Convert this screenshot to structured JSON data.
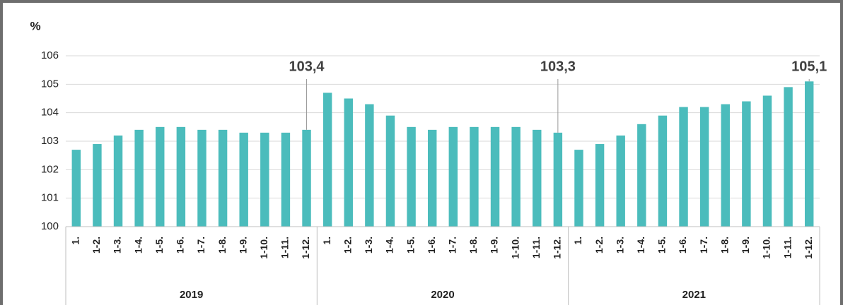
{
  "chart_data": {
    "type": "bar",
    "y_label": "%",
    "categories": [
      "1.",
      "1-2.",
      "1-3.",
      "1-4.",
      "1-5.",
      "1-6.",
      "1-7.",
      "1-8.",
      "1-9.",
      "1-10.",
      "1-11.",
      "1-12.",
      "1.",
      "1-2.",
      "1-3.",
      "1-4.",
      "1-5.",
      "1-6.",
      "1-7.",
      "1-8.",
      "1-9.",
      "1-10.",
      "1-11.",
      "1-12.",
      "1.",
      "1-2.",
      "1-3.",
      "1-4.",
      "1-5.",
      "1-6.",
      "1-7.",
      "1-8.",
      "1-9.",
      "1-10.",
      "1-11.",
      "1-12."
    ],
    "groups": [
      "2019",
      "2020",
      "2021"
    ],
    "values": [
      102.7,
      102.9,
      103.2,
      103.4,
      103.5,
      103.5,
      103.4,
      103.4,
      103.3,
      103.3,
      103.3,
      103.4,
      104.7,
      104.5,
      104.3,
      103.9,
      103.5,
      103.4,
      103.5,
      103.5,
      103.5,
      103.5,
      103.4,
      103.3,
      102.7,
      102.9,
      103.2,
      103.6,
      103.9,
      104.2,
      104.2,
      104.3,
      104.4,
      104.6,
      104.9,
      105.1
    ],
    "value_labels": [
      null,
      null,
      null,
      null,
      null,
      null,
      null,
      null,
      null,
      null,
      null,
      "103,4",
      null,
      null,
      null,
      null,
      null,
      null,
      null,
      null,
      null,
      null,
      null,
      "103,3",
      null,
      null,
      null,
      null,
      null,
      null,
      null,
      null,
      null,
      null,
      null,
      "105,1"
    ],
    "color": "#4bbcbc",
    "ylim": [
      100,
      106
    ],
    "yticks": [
      100,
      101,
      102,
      103,
      104,
      105,
      106
    ],
    "grid": true
  }
}
